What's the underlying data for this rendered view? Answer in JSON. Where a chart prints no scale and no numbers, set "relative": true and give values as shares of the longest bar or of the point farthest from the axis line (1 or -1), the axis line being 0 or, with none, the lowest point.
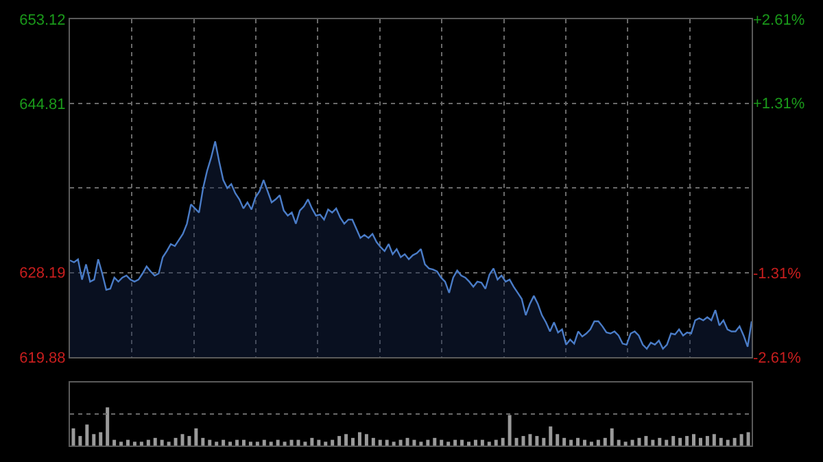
{
  "chart_data": [
    {
      "type": "area",
      "categories": [
        null,
        null,
        null,
        null,
        null,
        null,
        null,
        null,
        null,
        null,
        null,
        null,
        null,
        null,
        null,
        null,
        null,
        null,
        null,
        null,
        null,
        null,
        null,
        null,
        null,
        null,
        null,
        null,
        null,
        null,
        null,
        null,
        null,
        null,
        null,
        null,
        null,
        null,
        null,
        null,
        null,
        null,
        null,
        null,
        null,
        null,
        null,
        null,
        null,
        null,
        null,
        null,
        null,
        null,
        null,
        null,
        null,
        null,
        null,
        null,
        null,
        null,
        null,
        null,
        null,
        null,
        null,
        null,
        null,
        null,
        null,
        null,
        null,
        null,
        null,
        null,
        null,
        null,
        null,
        null,
        null,
        null,
        null,
        null,
        null,
        null,
        null,
        null,
        null,
        null,
        null,
        null,
        null,
        null,
        null,
        null,
        null,
        null,
        null,
        null,
        null,
        null,
        null,
        null,
        null,
        null,
        null,
        null,
        null,
        null,
        null,
        null,
        null,
        null,
        null,
        null,
        null,
        null,
        null,
        null,
        null,
        null,
        null,
        null,
        null,
        null,
        null,
        null,
        null,
        null,
        null,
        null,
        null,
        null,
        null,
        null,
        null,
        null,
        null,
        null,
        null,
        null,
        null,
        null,
        null,
        null,
        null,
        null,
        null,
        null,
        null,
        null,
        null,
        null,
        null,
        null,
        null,
        null,
        null,
        null,
        null,
        null,
        null,
        null,
        null,
        null,
        null,
        null,
        null,
        null
      ],
      "ylim": [
        619.88,
        653.12
      ],
      "yticks": [
        653.12,
        644.81,
        {
          "value": 636.5,
          "label": null
        },
        628.19,
        619.88
      ],
      "y2lim": [
        -2.61,
        2.61
      ],
      "y2ticks": [
        {
          "value": 2.61,
          "label": "+2.61%"
        },
        {
          "value": 1.31,
          "label": "+1.31%"
        },
        {
          "value": -1.31,
          "label": "-1.31%"
        },
        {
          "value": -2.61,
          "label": "-2.61%"
        }
      ],
      "grid": true,
      "tick_labels": "y",
      "series": [
        {
          "color": "#4a7cc7",
          "values": [
            629.4,
            629.2,
            629.5,
            627.5,
            629.0,
            627.3,
            627.5,
            629.5,
            628.1,
            626.5,
            626.6,
            627.7,
            627.3,
            627.7,
            627.9,
            627.5,
            627.3,
            627.5,
            628.1,
            628.8,
            628.3,
            627.9,
            628.1,
            629.7,
            630.3,
            631.0,
            630.8,
            631.4,
            632.0,
            633.0,
            634.9,
            634.5,
            634.1,
            636.5,
            638.2,
            639.5,
            641.1,
            639.1,
            637.3,
            636.5,
            636.9,
            636.0,
            635.4,
            634.5,
            635.1,
            634.4,
            635.6,
            636.2,
            637.3,
            636.2,
            635.1,
            635.4,
            635.8,
            634.3,
            633.8,
            634.1,
            633.0,
            634.3,
            634.7,
            635.4,
            634.5,
            633.8,
            633.9,
            633.4,
            634.4,
            634.1,
            634.5,
            633.6,
            633.0,
            633.4,
            633.4,
            632.5,
            631.6,
            631.9,
            631.6,
            632.0,
            631.2,
            630.7,
            630.3,
            631.0,
            630.0,
            630.5,
            629.7,
            630.0,
            629.5,
            629.9,
            630.1,
            630.5,
            629.0,
            628.6,
            628.5,
            628.3,
            627.7,
            627.3,
            626.2,
            627.7,
            628.4,
            627.9,
            627.7,
            627.3,
            626.8,
            627.3,
            627.2,
            626.6,
            628.0,
            628.6,
            627.5,
            627.9,
            627.3,
            627.5,
            626.8,
            626.2,
            625.6,
            624.0,
            625.1,
            625.9,
            625.1,
            624.0,
            623.3,
            622.4,
            623.3,
            622.3,
            622.6,
            621.1,
            621.6,
            621.2,
            622.4,
            621.9,
            622.2,
            622.6,
            623.4,
            623.4,
            622.9,
            622.3,
            622.2,
            622.4,
            622.0,
            621.2,
            621.1,
            622.2,
            622.4,
            622.0,
            621.1,
            620.7,
            621.3,
            621.1,
            621.5,
            620.7,
            621.1,
            622.2,
            622.1,
            622.6,
            622.0,
            622.3,
            622.2,
            623.5,
            623.7,
            623.5,
            623.8,
            623.5,
            624.5,
            623.0,
            623.5,
            622.6,
            622.4,
            622.4,
            622.9,
            622.0,
            620.9,
            623.4
          ]
        }
      ]
    },
    {
      "type": "bar",
      "relative": true,
      "tick_labels": false,
      "ref_lines": [
        {
          "axis": "y",
          "value": 0.825
        }
      ],
      "categories": [
        null,
        null,
        null,
        null,
        null,
        null,
        null,
        null,
        null,
        null,
        null,
        null,
        null,
        null,
        null,
        null,
        null,
        null,
        null,
        null,
        null,
        null,
        null,
        null,
        null,
        null,
        null,
        null,
        null,
        null,
        null,
        null,
        null,
        null,
        null,
        null,
        null,
        null,
        null,
        null,
        null,
        null,
        null,
        null,
        null,
        null,
        null,
        null,
        null,
        null,
        null,
        null,
        null,
        null,
        null,
        null,
        null,
        null,
        null,
        null,
        null,
        null,
        null,
        null,
        null,
        null,
        null,
        null,
        null,
        null,
        null,
        null,
        null,
        null,
        null,
        null,
        null,
        null,
        null,
        null,
        null,
        null,
        null,
        null,
        null,
        null,
        null,
        null,
        null,
        null,
        null,
        null,
        null,
        null,
        null,
        null,
        null,
        null,
        null,
        null
      ],
      "series": [
        {
          "color": "#9a9a9a",
          "values": [
            0.45,
            0.25,
            0.55,
            0.3,
            0.35,
            1.0,
            0.15,
            0.1,
            0.15,
            0.1,
            0.1,
            0.15,
            0.2,
            0.15,
            0.1,
            0.2,
            0.3,
            0.25,
            0.45,
            0.2,
            0.15,
            0.1,
            0.15,
            0.1,
            0.15,
            0.15,
            0.1,
            0.1,
            0.15,
            0.1,
            0.15,
            0.1,
            0.15,
            0.15,
            0.1,
            0.2,
            0.15,
            0.1,
            0.15,
            0.25,
            0.3,
            0.2,
            0.35,
            0.3,
            0.2,
            0.15,
            0.15,
            0.1,
            0.15,
            0.2,
            0.15,
            0.1,
            0.15,
            0.2,
            0.15,
            0.1,
            0.15,
            0.15,
            0.1,
            0.15,
            0.15,
            0.1,
            0.15,
            0.2,
            0.8,
            0.2,
            0.25,
            0.3,
            0.25,
            0.2,
            0.5,
            0.3,
            0.2,
            0.15,
            0.2,
            0.15,
            0.1,
            0.15,
            0.2,
            0.45,
            0.15,
            0.1,
            0.15,
            0.2,
            0.25,
            0.15,
            0.2,
            0.15,
            0.25,
            0.2,
            0.25,
            0.3,
            0.2,
            0.25,
            0.3,
            0.2,
            0.15,
            0.2,
            0.3,
            0.35
          ]
        }
      ]
    }
  ]
}
